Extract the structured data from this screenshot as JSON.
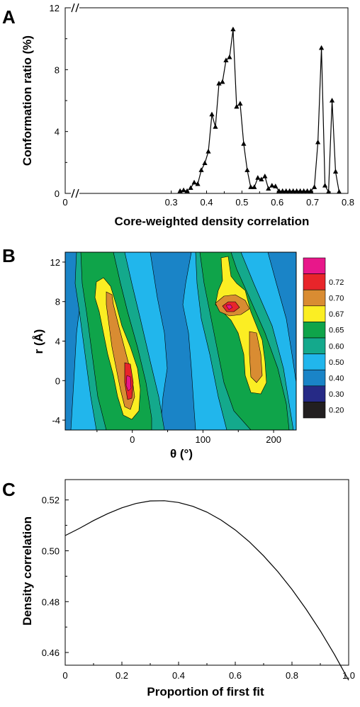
{
  "chart_data": [
    {
      "panel": "A",
      "type": "line",
      "xlabel": "Core-weighted density correlation",
      "ylabel": "Conformation ratio (%)",
      "xlim": [
        0,
        0.8
      ],
      "ylim": [
        0,
        12
      ],
      "x_tick_labels": [
        "0",
        "0.3",
        "0.4",
        "0.5",
        "0.6",
        "0.7",
        "0.8"
      ],
      "y_tick_labels": [
        "0",
        "4",
        "8",
        "12"
      ],
      "axis_break": true,
      "marker": "triangle",
      "x": [
        0.325,
        0.335,
        0.345,
        0.355,
        0.365,
        0.375,
        0.385,
        0.395,
        0.405,
        0.415,
        0.425,
        0.435,
        0.445,
        0.455,
        0.465,
        0.475,
        0.485,
        0.495,
        0.505,
        0.515,
        0.525,
        0.535,
        0.545,
        0.555,
        0.565,
        0.575,
        0.585,
        0.595,
        0.605,
        0.615,
        0.625,
        0.635,
        0.645,
        0.655,
        0.665,
        0.675,
        0.685,
        0.695,
        0.705,
        0.715,
        0.725,
        0.735,
        0.745,
        0.755,
        0.765,
        0.775
      ],
      "y": [
        0.15,
        0.2,
        0.15,
        0.35,
        0.7,
        0.6,
        1.5,
        1.95,
        2.7,
        5.1,
        4.3,
        7.1,
        7.2,
        8.6,
        8.8,
        10.6,
        5.6,
        5.8,
        3.2,
        1.5,
        0.4,
        0.4,
        1.0,
        0.9,
        1.1,
        0.3,
        0.5,
        0.45,
        0.15,
        0.15,
        0.15,
        0.15,
        0.15,
        0.15,
        0.15,
        0.15,
        0.15,
        0.15,
        0.4,
        3.3,
        9.4,
        0.5,
        0.1,
        6.0,
        1.4,
        0.1
      ]
    },
    {
      "panel": "B",
      "type": "heatmap",
      "xlabel": "θ (°)",
      "ylabel": "r (Å)",
      "xlim": [
        -95,
        232
      ],
      "ylim": [
        -5,
        13
      ],
      "x_tick_labels": [
        "0",
        "100",
        "200"
      ],
      "y_tick_labels": [
        "-4",
        "0",
        "4",
        "8",
        "12"
      ],
      "legend": {
        "placement": "right",
        "levels": [
          {
            "label": "",
            "color": "#e8178a"
          },
          {
            "label": "0.72",
            "color": "#e8252a"
          },
          {
            "label": "0.70",
            "color": "#d98c32"
          },
          {
            "label": "0.67",
            "color": "#fbee23"
          },
          {
            "label": "0.65",
            "color": "#0fa44a"
          },
          {
            "label": "0.60",
            "color": "#14a98c"
          },
          {
            "label": "0.50",
            "color": "#21b6ec"
          },
          {
            "label": "0.40",
            "color": "#1a84c7"
          },
          {
            "label": "0.30",
            "color": "#262a86"
          },
          {
            "label": "0.20",
            "color": "#221f20"
          }
        ]
      }
    },
    {
      "panel": "C",
      "type": "line",
      "xlabel": "Proportion of first fit",
      "ylabel": "Density correlation",
      "xlim": [
        0,
        1.0
      ],
      "ylim": [
        0.455,
        0.528
      ],
      "x_tick_labels": [
        "0",
        "0.2",
        "0.4",
        "0.6",
        "0.8",
        "1.0"
      ],
      "y_tick_labels": [
        "0.46",
        "0.48",
        "0.50",
        "0.52"
      ],
      "x": [
        0,
        0.05,
        0.1,
        0.15,
        0.2,
        0.25,
        0.3,
        0.35,
        0.4,
        0.45,
        0.5,
        0.55,
        0.6,
        0.65,
        0.7,
        0.75,
        0.8,
        0.85,
        0.9,
        0.95,
        1.0
      ],
      "y": [
        0.506,
        0.5088,
        0.5119,
        0.5146,
        0.5169,
        0.5186,
        0.5196,
        0.5197,
        0.519,
        0.5175,
        0.5152,
        0.5121,
        0.5082,
        0.5035,
        0.498,
        0.4918,
        0.4848,
        0.477,
        0.4685,
        0.4592,
        0.4491
      ]
    }
  ]
}
